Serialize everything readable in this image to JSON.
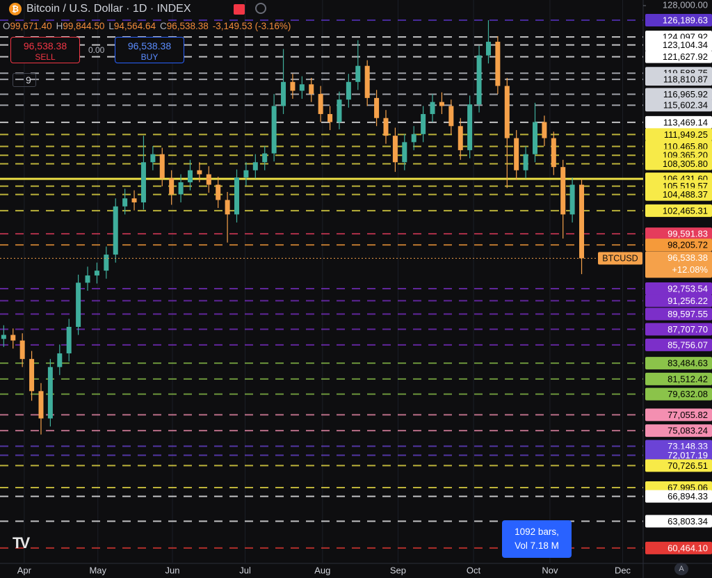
{
  "header": {
    "title": "Bitcoin / U.S. Dollar · 1D · INDEX",
    "ohlc": [
      {
        "key": "O",
        "value": "99,671.40"
      },
      {
        "key": "H",
        "value": "99,844.50"
      },
      {
        "key": "L",
        "value": "94,564.64"
      },
      {
        "key": "C",
        "value": "96,538.38"
      }
    ],
    "change": "-3,149.53 (-3.16%)"
  },
  "trade": {
    "sell_price": "96,538.38",
    "sell": "SELL",
    "spread": "0.00",
    "buy_price": "96,538.38",
    "buy": "BUY"
  },
  "indicators": "9",
  "info": {
    "bars": "1092 bars,",
    "volume": "Vol 7.18 M"
  },
  "auto_scale": "A",
  "chart_data": {
    "type": "candlestick",
    "symbol": "BTCUSD",
    "change_label": "+12.08%",
    "last": {
      "value": 96538.38,
      "label": "96,538.38"
    },
    "up_color": "#3fae9c",
    "down_color": "#f5a14a",
    "xlim": [
      -0.4,
      68.6
    ],
    "xticks": [
      {
        "value": 2.2,
        "label": "Apr"
      },
      {
        "value": 10.1,
        "label": "May"
      },
      {
        "value": 18.1,
        "label": "Jun"
      },
      {
        "value": 25.9,
        "label": "Jul"
      },
      {
        "value": 34.2,
        "label": "Aug"
      },
      {
        "value": 42.3,
        "label": "Sep"
      },
      {
        "value": 50.4,
        "label": "Oct"
      },
      {
        "value": 58.6,
        "label": "Nov"
      },
      {
        "value": 66.4,
        "label": "Dec"
      }
    ],
    "ylim": [
      58550,
      128700
    ],
    "yticks": [
      {
        "value": 128000,
        "label": "128,000.00"
      }
    ],
    "open": [
      86500,
      87000,
      86300,
      84000,
      80000,
      76600,
      83000,
      84700,
      88000,
      93500,
      94400,
      95000,
      97000,
      103000,
      104000,
      103500,
      108500,
      109500,
      106500,
      104500,
      106000,
      107500,
      107000,
      105700,
      103800,
      102000,
      106600,
      107500,
      108500,
      109600,
      115500,
      118500,
      117400,
      118200,
      117000,
      114500,
      113500,
      116300,
      118500,
      120500,
      116500,
      114000,
      111800,
      108500,
      111000,
      112000,
      114500,
      116000,
      115500,
      113000,
      110000,
      115700,
      121800,
      123500,
      118000,
      111500,
      107500,
      109500,
      113500,
      111500,
      107900,
      102000,
      105700
    ],
    "high": [
      88200,
      87800,
      87200,
      85000,
      81000,
      84000,
      85800,
      89000,
      94500,
      95500,
      96000,
      98000,
      104000,
      105200,
      105000,
      111800,
      110500,
      110300,
      107500,
      107000,
      108800,
      108500,
      108000,
      106700,
      104800,
      107600,
      108500,
      109500,
      110500,
      117000,
      122600,
      119500,
      119200,
      119000,
      118000,
      115500,
      117300,
      119500,
      123700,
      121200,
      117500,
      115000,
      112800,
      112000,
      113000,
      115500,
      117000,
      117200,
      116300,
      114000,
      116800,
      123000,
      126189.63,
      124200,
      119000,
      112500,
      110500,
      115900,
      114300,
      112300,
      108800,
      106600,
      106400
    ],
    "low": [
      85500,
      85300,
      83000,
      78800,
      74600,
      75600,
      82000,
      83700,
      87000,
      92500,
      93400,
      94000,
      96000,
      102000,
      102500,
      102600,
      107500,
      105500,
      103200,
      103500,
      105000,
      106000,
      104700,
      102800,
      98500,
      101000,
      105600,
      106500,
      107500,
      108600,
      114500,
      116400,
      116400,
      116000,
      113500,
      112500,
      112600,
      115300,
      117500,
      115500,
      113000,
      110800,
      107300,
      107500,
      110000,
      111000,
      113500,
      114500,
      112000,
      108800,
      109000,
      114700,
      120800,
      117000,
      105300,
      106300,
      106500,
      108500,
      110500,
      106900,
      99000,
      101000,
      94564.64
    ],
    "close": [
      87000,
      86300,
      84000,
      80000,
      76600,
      83000,
      84700,
      88000,
      93500,
      94400,
      95000,
      97000,
      103000,
      104000,
      103500,
      108500,
      109500,
      106500,
      104500,
      106000,
      107500,
      107000,
      105700,
      103800,
      102000,
      106600,
      107500,
      108500,
      109600,
      115500,
      118500,
      117400,
      118200,
      117000,
      114500,
      113500,
      116300,
      118500,
      120500,
      116500,
      114000,
      111800,
      108500,
      111000,
      112000,
      114500,
      116000,
      115500,
      113000,
      110000,
      115700,
      121800,
      123500,
      118000,
      111500,
      107500,
      109500,
      113500,
      111500,
      107900,
      102000,
      105700,
      96538.38
    ],
    "levels": [
      {
        "value": 126189.63,
        "label": "126,189.63",
        "color": "#5b34c9",
        "text_color": "#ffffff",
        "line": "dashed"
      },
      {
        "value": 124097.92,
        "label": "124,097.92",
        "color": "#ffffff",
        "text_color": "#000000",
        "line": "dashed"
      },
      {
        "value": 123104.34,
        "label": "123,104.34",
        "color": "#ffffff",
        "text_color": "#000000",
        "line": "dashed"
      },
      {
        "value": 121627.92,
        "label": "121,627.92",
        "color": "#ffffff",
        "text_color": "#000000",
        "line": "dashed"
      },
      {
        "value": 119588.75,
        "label": "119,588.75",
        "color": "#d1d4dc",
        "text_color": "#000000",
        "line": "dashed"
      },
      {
        "value": 118810.87,
        "label": "118,810.87",
        "color": "#d1d4dc",
        "text_color": "#000000",
        "line": "dashed"
      },
      {
        "value": 116965.92,
        "label": "116,965.92",
        "color": "#d1d4dc",
        "text_color": "#000000",
        "line": "dashed"
      },
      {
        "value": 115602.34,
        "label": "115,602.34",
        "color": "#d1d4dc",
        "text_color": "#000000",
        "line": "dashed"
      },
      {
        "value": 113469.14,
        "label": "113,469.14",
        "color": "#ffffff",
        "text_color": "#000000",
        "line": "dashed"
      },
      {
        "value": 111949.25,
        "label": "111,949.25",
        "color": "#f7ea48",
        "text_color": "#000000",
        "line": "dashed"
      },
      {
        "value": 110465.8,
        "label": "110,465.80",
        "color": "#f7ea48",
        "text_color": "#000000",
        "line": "dashed"
      },
      {
        "value": 109365.2,
        "label": "109,365.20",
        "color": "#f7ea48",
        "text_color": "#000000",
        "line": "dashed"
      },
      {
        "value": 108305.8,
        "label": "108,305.80",
        "color": "#f7ea48",
        "text_color": "#000000",
        "line": "dashed"
      },
      {
        "value": 106431.6,
        "label": "106,431.60",
        "color": "#f7ea48",
        "text_color": "#000000",
        "line": "solid"
      },
      {
        "value": 105519.57,
        "label": "105,519.57",
        "color": "#f7ea48",
        "text_color": "#000000",
        "line": "dashed"
      },
      {
        "value": 104488.37,
        "label": "104,488.37",
        "color": "#f7ea48",
        "text_color": "#000000",
        "line": "dashed"
      },
      {
        "value": 102465.31,
        "label": "102,465.31",
        "color": "#f7ea48",
        "text_color": "#000000",
        "line": "dashed"
      },
      {
        "value": 99591.83,
        "label": "99,591.83",
        "color": "#e53c5c",
        "text_color": "#ffffff",
        "line": "dashed"
      },
      {
        "value": 98205.72,
        "label": "98,205.72",
        "color": "#f59a3a",
        "text_color": "#000000",
        "line": "dashed"
      },
      {
        "value": 92753.54,
        "label": "92,753.54",
        "color": "#7c2fc9",
        "text_color": "#ffffff",
        "line": "dashed"
      },
      {
        "value": 91256.22,
        "label": "91,256.22",
        "color": "#7c2fc9",
        "text_color": "#ffffff",
        "line": "dashed"
      },
      {
        "value": 89597.55,
        "label": "89,597.55",
        "color": "#7c2fc9",
        "text_color": "#ffffff",
        "line": "dashed"
      },
      {
        "value": 87707.7,
        "label": "87,707.70",
        "color": "#7c2fc9",
        "text_color": "#ffffff",
        "line": "dashed"
      },
      {
        "value": 85756.07,
        "label": "85,756.07",
        "color": "#7c2fc9",
        "text_color": "#ffffff",
        "line": "dashed"
      },
      {
        "value": 83484.63,
        "label": "83,484.63",
        "color": "#8bc34a",
        "text_color": "#000000",
        "line": "dashed"
      },
      {
        "value": 81512.42,
        "label": "81,512.42",
        "color": "#8bc34a",
        "text_color": "#000000",
        "line": "dashed"
      },
      {
        "value": 79632.08,
        "label": "79,632.08",
        "color": "#8bc34a",
        "text_color": "#000000",
        "line": "dashed"
      },
      {
        "value": 77055.82,
        "label": "77,055.82",
        "color": "#f48fb1",
        "text_color": "#000000",
        "line": "dashed"
      },
      {
        "value": 75083.24,
        "label": "75,083.24",
        "color": "#f48fb1",
        "text_color": "#000000",
        "line": "dashed"
      },
      {
        "value": 73148.33,
        "label": "73,148.33",
        "color": "#6b43d6",
        "text_color": "#ffffff",
        "line": "dashed"
      },
      {
        "value": 72017.19,
        "label": "72,017.19",
        "color": "#6b43d6",
        "text_color": "#ffffff",
        "line": "dashed"
      },
      {
        "value": 70726.51,
        "label": "70,726.51",
        "color": "#f7ea48",
        "text_color": "#000000",
        "line": "dashed"
      },
      {
        "value": 67995.06,
        "label": "67,995.06",
        "color": "#f7ea48",
        "text_color": "#000000",
        "line": "dashed"
      },
      {
        "value": 66894.33,
        "label": "66,894.33",
        "color": "#ffffff",
        "text_color": "#000000",
        "line": "dashed"
      },
      {
        "value": 63803.34,
        "label": "63,803.34",
        "color": "#ffffff",
        "text_color": "#000000",
        "line": "dashed"
      },
      {
        "value": 60464.1,
        "label": "60,464.10",
        "color": "#e53935",
        "text_color": "#ffffff",
        "line": "dashed"
      }
    ]
  }
}
